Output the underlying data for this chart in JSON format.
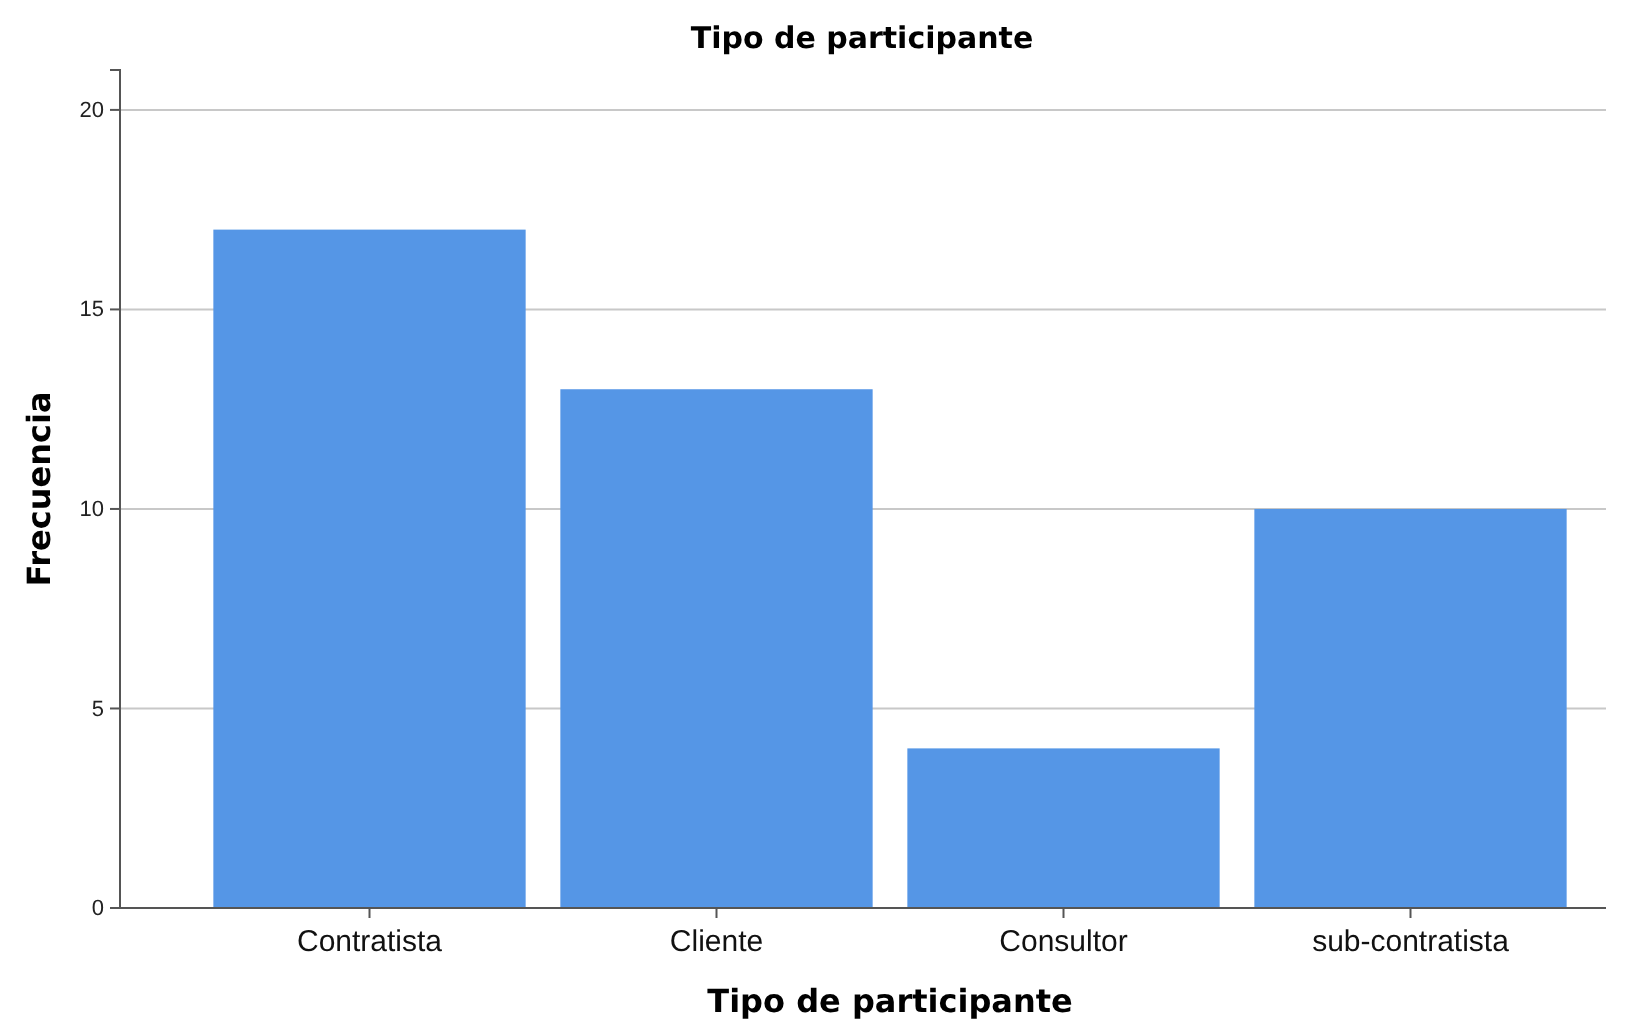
{
  "chart_data": {
    "type": "bar",
    "title": "Tipo de participante",
    "xlabel": "Tipo de participante",
    "ylabel": "Frecuencia",
    "categories": [
      "Contratista",
      "Cliente",
      "Consultor",
      "sub-contratista"
    ],
    "values": [
      17,
      13,
      4,
      10
    ],
    "color": "#5596e6",
    "ylim": [
      0,
      21
    ],
    "yticks": [
      0,
      5,
      10,
      15,
      20
    ],
    "grid": "y"
  }
}
